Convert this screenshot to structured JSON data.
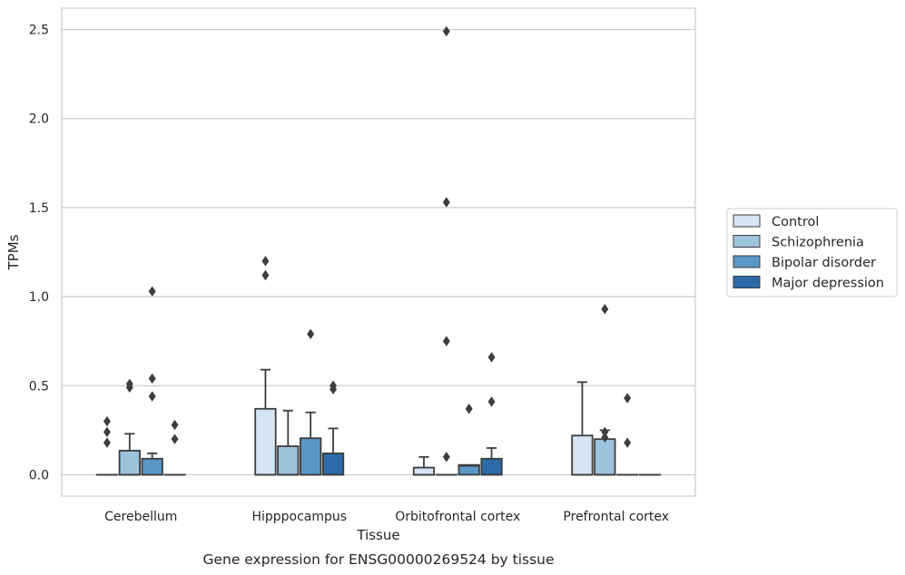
{
  "chart_data": {
    "type": "box",
    "caption": "Gene expression for ENSG00000269524 by tissue",
    "xlabel": "Tissue",
    "ylabel": "TPMs",
    "ylim": [
      -0.12,
      2.62
    ],
    "yticks": [
      0.0,
      0.5,
      1.0,
      1.5,
      2.0,
      2.5
    ],
    "ytick_labels": [
      "0.0",
      "0.5",
      "1.0",
      "1.5",
      "2.0",
      "2.5"
    ],
    "grid": "horizontal",
    "legend_position": "right",
    "categories": [
      "Cerebellum",
      "Hipppocampus",
      "Orbitofrontal cortex",
      "Prefrontal cortex"
    ],
    "series": [
      {
        "name": "Control",
        "color": "#d6e5f3",
        "boxes": [
          {
            "q1": 0.0,
            "median": 0.0,
            "q3": 0.0,
            "whisker_low": 0.0,
            "whisker_high": 0.0,
            "outliers": [
              0.18,
              0.24,
              0.3
            ]
          },
          {
            "q1": 0.0,
            "median": 0.0,
            "q3": 0.37,
            "whisker_low": 0.0,
            "whisker_high": 0.59,
            "outliers": [
              1.12,
              1.2
            ]
          },
          {
            "q1": 0.0,
            "median": 0.0,
            "q3": 0.04,
            "whisker_low": 0.0,
            "whisker_high": 0.1,
            "outliers": []
          },
          {
            "q1": 0.0,
            "median": 0.0,
            "q3": 0.22,
            "whisker_low": 0.0,
            "whisker_high": 0.52,
            "outliers": []
          }
        ]
      },
      {
        "name": "Schizophrenia",
        "color": "#9cc3dc",
        "boxes": [
          {
            "q1": 0.0,
            "median": 0.0,
            "q3": 0.135,
            "whisker_low": 0.0,
            "whisker_high": 0.23,
            "outliers": [
              0.49,
              0.51
            ]
          },
          {
            "q1": 0.0,
            "median": 0.0,
            "q3": 0.16,
            "whisker_low": 0.0,
            "whisker_high": 0.36,
            "outliers": []
          },
          {
            "q1": 0.0,
            "median": 0.0,
            "q3": 0.0,
            "whisker_low": 0.0,
            "whisker_high": 0.0,
            "outliers": [
              0.1,
              0.75,
              1.53,
              2.49
            ]
          },
          {
            "q1": 0.0,
            "median": 0.0,
            "q3": 0.2,
            "whisker_low": 0.0,
            "whisker_high": 0.25,
            "outliers": [
              0.21,
              0.24,
              0.93
            ]
          }
        ]
      },
      {
        "name": "Bipolar disorder",
        "color": "#5997c7",
        "boxes": [
          {
            "q1": 0.0,
            "median": 0.0,
            "q3": 0.09,
            "whisker_low": 0.0,
            "whisker_high": 0.12,
            "outliers": [
              0.44,
              0.54,
              1.03
            ]
          },
          {
            "q1": 0.0,
            "median": 0.0,
            "q3": 0.205,
            "whisker_low": 0.0,
            "whisker_high": 0.35,
            "outliers": [
              0.79
            ]
          },
          {
            "q1": 0.0,
            "median": 0.05,
            "q3": 0.055,
            "whisker_low": 0.0,
            "whisker_high": 0.055,
            "outliers": [
              0.37
            ]
          },
          {
            "q1": 0.0,
            "median": 0.0,
            "q3": 0.0,
            "whisker_low": 0.0,
            "whisker_high": 0.0,
            "outliers": [
              0.18,
              0.43
            ]
          }
        ]
      },
      {
        "name": "Major depression",
        "color": "#2c6aa8",
        "boxes": [
          {
            "q1": 0.0,
            "median": 0.0,
            "q3": 0.0,
            "whisker_low": 0.0,
            "whisker_high": 0.0,
            "outliers": [
              0.2,
              0.28
            ]
          },
          {
            "q1": 0.0,
            "median": 0.0,
            "q3": 0.12,
            "whisker_low": 0.0,
            "whisker_high": 0.26,
            "outliers": [
              0.48,
              0.5
            ]
          },
          {
            "q1": 0.0,
            "median": 0.0,
            "q3": 0.09,
            "whisker_low": 0.0,
            "whisker_high": 0.15,
            "outliers": [
              0.41,
              0.66
            ]
          },
          {
            "q1": 0.0,
            "median": 0.0,
            "q3": 0.0,
            "whisker_low": 0.0,
            "whisker_high": 0.0,
            "outliers": []
          }
        ]
      }
    ]
  }
}
